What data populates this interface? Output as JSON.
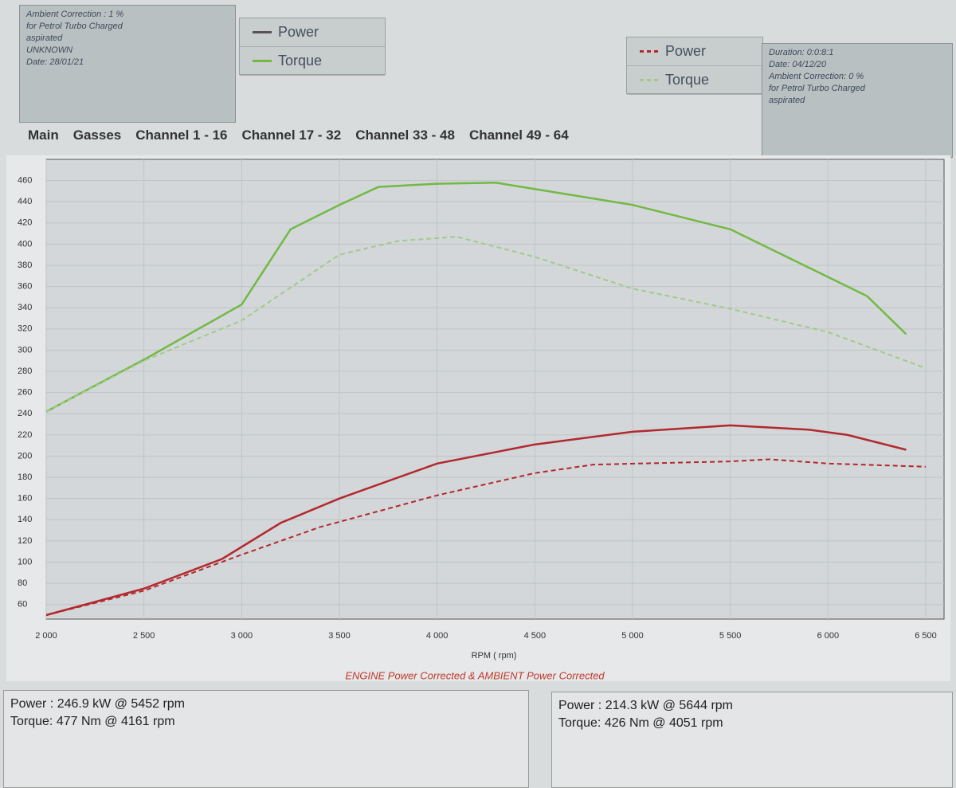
{
  "left_info": {
    "lines": [
      "Ambient Correction : 1 %",
      "for Petrol Turbo Charged",
      "aspirated",
      "UNKNOWN",
      "Date: 28/01/21"
    ]
  },
  "legend_a": {
    "items": [
      "Power",
      "Torque"
    ]
  },
  "legend_b": {
    "items": [
      "Power",
      "Torque"
    ]
  },
  "right_info": {
    "lines": [
      "Duration: 0:0:8:1",
      "Date: 04/12/20",
      "Ambient Correction: 0 %",
      "for Petrol Turbo Charged",
      "aspirated"
    ]
  },
  "tabs": [
    "Main",
    "Gasses",
    "Channel 1 - 16",
    "Channel 17 - 32",
    "Channel 33 - 48",
    "Channel 49 - 64"
  ],
  "chart": {
    "type": "line",
    "xlabel": "RPM ( rpm)",
    "subtitle": "ENGINE Power Corrected & AMBIENT Power Corrected",
    "xlim": [
      2000,
      6500
    ],
    "ylim": [
      50,
      480
    ],
    "grid": true,
    "xticks": [
      {
        "value": 2000,
        "label": "2 000"
      },
      {
        "value": 2500,
        "label": "2 500"
      },
      {
        "value": 3000,
        "label": "3 000"
      },
      {
        "value": 3500,
        "label": "3 500"
      },
      {
        "value": 4000,
        "label": "4 000"
      },
      {
        "value": 4500,
        "label": "4 500"
      },
      {
        "value": 5000,
        "label": "5 000"
      },
      {
        "value": 5500,
        "label": "5 500"
      },
      {
        "value": 6000,
        "label": "6 000"
      },
      {
        "value": 6500,
        "label": "6 500"
      }
    ],
    "yticks": [
      60,
      80,
      100,
      120,
      140,
      160,
      180,
      200,
      220,
      240,
      260,
      280,
      300,
      320,
      340,
      360,
      380,
      400,
      420,
      440,
      460
    ],
    "series": [
      {
        "name": "Torque",
        "color": "#72b944",
        "dash": false,
        "x": [
          2000,
          2500,
          3000,
          3250,
          3500,
          3700,
          4000,
          4300,
          4500,
          5000,
          5500,
          6000,
          6200,
          6400
        ],
        "values": [
          242,
          291,
          343,
          414,
          437,
          454,
          457,
          458,
          452,
          437,
          414,
          369,
          351,
          315
        ]
      },
      {
        "name": "Torque",
        "color": "#a3c98a",
        "dash": true,
        "x": [
          2000,
          2500,
          3000,
          3500,
          3800,
          4100,
          4500,
          5000,
          5500,
          6000,
          6500
        ],
        "values": [
          242,
          290,
          328,
          390,
          403,
          407,
          388,
          358,
          339,
          317,
          283
        ]
      },
      {
        "name": "Power",
        "color": "#b3282d",
        "dash": false,
        "x": [
          2000,
          2500,
          2900,
          3200,
          3500,
          4000,
          4500,
          5000,
          5500,
          5900,
          6100,
          6400
        ],
        "values": [
          50,
          75,
          103,
          137,
          160,
          193,
          211,
          223,
          229,
          225,
          220,
          206
        ]
      },
      {
        "name": "Power",
        "color": "#b3282d",
        "dash": true,
        "x": [
          2000,
          2500,
          3000,
          3400,
          4000,
          4500,
          4800,
          5500,
          5700,
          6000,
          6500
        ],
        "values": [
          50,
          73,
          107,
          133,
          163,
          184,
          192,
          195,
          197,
          193,
          190
        ]
      }
    ]
  },
  "result_a": {
    "lines": [
      "Power : 246.9 kW @ 5452 rpm",
      "Torque: 477 Nm @ 4161 rpm"
    ]
  },
  "result_b": {
    "lines": [
      "Power : 214.3 kW @ 5644 rpm",
      "Torque: 426 Nm @ 4051 rpm"
    ]
  }
}
